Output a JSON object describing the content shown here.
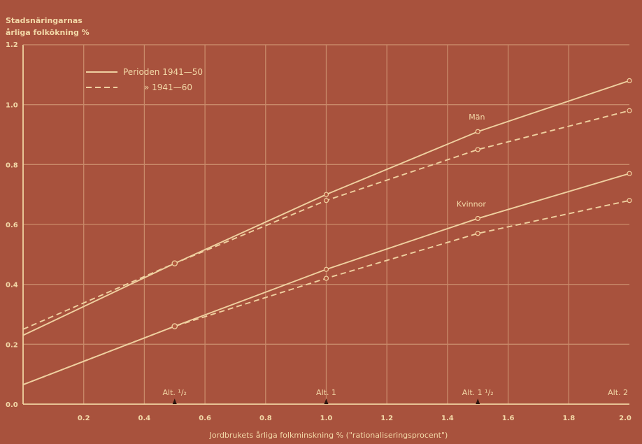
{
  "chart_data": {
    "type": "line",
    "ylabel": [
      "Stadsnäringarnas",
      "årliga folkökning %"
    ],
    "xlabel": "Jordbrukets årliga folkminskning % (\"rationaliseringsprocent\")",
    "xlim": [
      0,
      2.0
    ],
    "ylim": [
      0,
      1.2
    ],
    "x_ticks": [
      "0.2",
      "0.4",
      "0.6",
      "0.8",
      "1.0",
      "1.2",
      "1.4",
      "1.6",
      "1.8",
      "2.0"
    ],
    "y_ticks": [
      "0.0",
      "0.2",
      "0.4",
      "0.6",
      "0.8",
      "1.0",
      "1.2"
    ],
    "grid": true,
    "legend": {
      "placement": "top-left",
      "entries": [
        {
          "label": "Perioden 1941—50",
          "style": "solid"
        },
        {
          "label": "» 1941—60",
          "style": "dashed"
        }
      ]
    },
    "series": [
      {
        "group": "Män",
        "style": "solid",
        "x": [
          0,
          0.5,
          1.0,
          1.5,
          2.0
        ],
        "y": [
          0.23,
          0.47,
          0.7,
          0.91,
          1.08
        ]
      },
      {
        "group": "Män",
        "style": "dashed",
        "x": [
          0,
          0.5,
          1.0,
          1.5,
          2.0
        ],
        "y": [
          0.25,
          0.47,
          0.68,
          0.85,
          0.98
        ]
      },
      {
        "group": "Kvinnor",
        "style": "solid",
        "x": [
          0,
          0.5,
          1.0,
          1.5,
          2.0
        ],
        "y": [
          0.065,
          0.26,
          0.45,
          0.62,
          0.77
        ]
      },
      {
        "group": "Kvinnor",
        "style": "dashed",
        "x": [
          0,
          0.5,
          1.0,
          1.5,
          2.0
        ],
        "y": [
          0.065,
          0.26,
          0.42,
          0.57,
          0.68
        ]
      }
    ],
    "annotations": [
      {
        "text": "Män",
        "x": 1.47,
        "y": 0.95
      },
      {
        "text": "Kvinnor",
        "x": 1.43,
        "y": 0.66
      }
    ],
    "markers": [
      {
        "text": "Alt. ¹/₂",
        "x": 0.5
      },
      {
        "text": "Alt. 1",
        "x": 1.0
      },
      {
        "text": "Alt. 1 ¹/₂",
        "x": 1.5
      },
      {
        "text": "Alt. 2",
        "x": 2.0
      }
    ]
  }
}
